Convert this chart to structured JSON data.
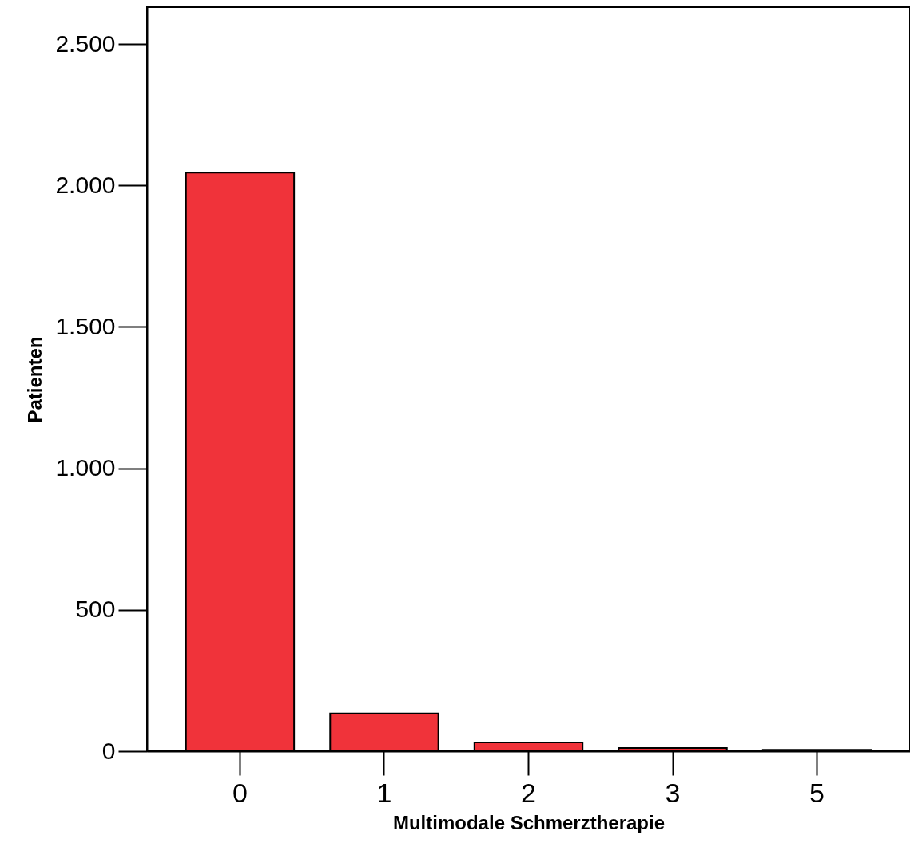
{
  "chart_data": {
    "type": "bar",
    "xlabel": "Multimodale Schmerztherapie",
    "ylabel": "Patienten",
    "categories": [
      "0",
      "1",
      "2",
      "3",
      "5"
    ],
    "values": [
      2045,
      133,
      31,
      11,
      5
    ],
    "color": "#f0333a",
    "ylim": [
      0,
      2630
    ],
    "yticks": [
      0,
      {
        "value": 500,
        "label": "500"
      },
      {
        "value": 1000,
        "label": "1.000"
      },
      {
        "value": 1500,
        "label": "1.500"
      },
      {
        "value": 2000,
        "label": "2.000"
      },
      {
        "value": 2500,
        "label": "2.500"
      }
    ],
    "grid": false
  }
}
